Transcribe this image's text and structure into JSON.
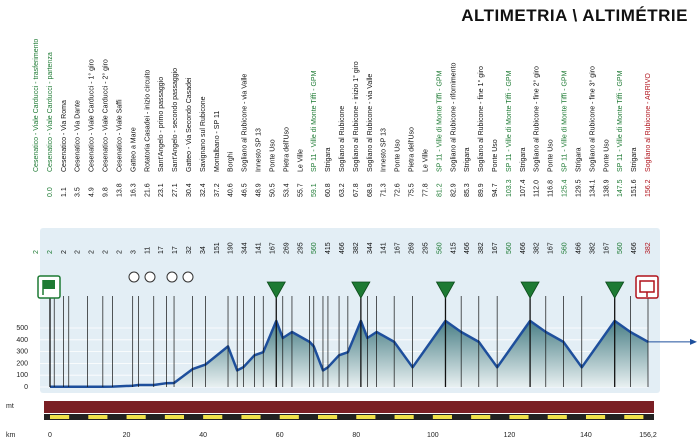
{
  "title": "ALTIMETRIA \\ ALTIMÉTRIE",
  "colors": {
    "green": "#1d7a33",
    "red": "#b0121b",
    "black": "#111111",
    "profile_stroke": "#1e4f9c",
    "profile_fill_top": "#4a7f86",
    "profile_fill_bottom": "#e8f0f1",
    "road_band": "#7a1f24",
    "km_bar_yellow": "#f0e14a",
    "sky_panel": "#e3eef5"
  },
  "axis": {
    "y_unit": "mt",
    "x_unit": "km",
    "y_ticks": [
      "500",
      "400",
      "300",
      "200",
      "100",
      "0"
    ],
    "x_ticks": [
      "0",
      "20",
      "40",
      "60",
      "80",
      "100",
      "120",
      "140"
    ],
    "x_end_label": "156,2"
  },
  "icons": {
    "start": "start-flag-icon",
    "finish": "finish-sign-icon",
    "sprint": "sprint-circles-icon",
    "gpm": "gpm-triangle-icon"
  },
  "waypoints": [
    {
      "name": "Cesenatico - Viale Carducci - trasferimento",
      "km": "",
      "alt": "2",
      "color": "green"
    },
    {
      "name": "Cesenatico - Viale Carducci - partenza",
      "km": "0.0",
      "alt": "2",
      "color": "green"
    },
    {
      "name": "Cesenatico - Via Roma",
      "km": "1.1",
      "alt": "2",
      "color": "black"
    },
    {
      "name": "Cesenatico - Via Dante",
      "km": "3.5",
      "alt": "2",
      "color": "black"
    },
    {
      "name": "Cesenatico - Viale Carducci - 1° giro",
      "km": "4.9",
      "alt": "2",
      "color": "black"
    },
    {
      "name": "Cesenatico - Viale Carducci - 2° giro",
      "km": "9.8",
      "alt": "2",
      "color": "black"
    },
    {
      "name": "Cesenatico - Viale Saffi",
      "km": "13.8",
      "alt": "2",
      "color": "black"
    },
    {
      "name": "Gatteo a Mare",
      "km": "16.3",
      "alt": "3",
      "color": "black"
    },
    {
      "name": "Rotatoria Casadei - inizio circuito",
      "km": "21.6",
      "alt": "11",
      "color": "black"
    },
    {
      "name": "Sant'Angelo - primo passaggio",
      "km": "23.1",
      "alt": "17",
      "color": "black"
    },
    {
      "name": "Sant'Angelo - secondo passaggio",
      "km": "27.1",
      "alt": "17",
      "color": "black"
    },
    {
      "name": "Gatteo - Via Secondo Casadei",
      "km": "30.4",
      "alt": "32",
      "color": "black"
    },
    {
      "name": "Savignano sul Rubicone",
      "km": "32.4",
      "alt": "34",
      "color": "black"
    },
    {
      "name": "Montalbano - SP 11",
      "km": "37.2",
      "alt": "151",
      "color": "black"
    },
    {
      "name": "Borghi",
      "km": "40.6",
      "alt": "190",
      "color": "black"
    },
    {
      "name": "Sogliano al Rubicone - via Valle",
      "km": "46.5",
      "alt": "344",
      "color": "black"
    },
    {
      "name": "Innesto SP 13",
      "km": "48.9",
      "alt": "141",
      "color": "black"
    },
    {
      "name": "Ponte Uso",
      "km": "50.5",
      "alt": "167",
      "color": "black"
    },
    {
      "name": "Pietra dell'Uso",
      "km": "53.4",
      "alt": "269",
      "color": "black"
    },
    {
      "name": "Le Ville",
      "km": "55.7",
      "alt": "295",
      "color": "black"
    },
    {
      "name": "SP 11 - Ville di Monte Tiffi - GPM",
      "km": "59.1",
      "alt": "560",
      "color": "green"
    },
    {
      "name": "Strigara",
      "km": "60.8",
      "alt": "415",
      "color": "black"
    },
    {
      "name": "Sogliano al Rubicone",
      "km": "63.2",
      "alt": "466",
      "color": "black"
    },
    {
      "name": "Sogliano al Rubicone - inizio 1° giro",
      "km": "67.8",
      "alt": "382",
      "color": "black"
    },
    {
      "name": "Sogliano al Rubicone - via Valle",
      "km": "68.9",
      "alt": "344",
      "color": "black"
    },
    {
      "name": "Innesto SP 13",
      "km": "71.3",
      "alt": "141",
      "color": "black"
    },
    {
      "name": "Ponte Uso",
      "km": "72.6",
      "alt": "167",
      "color": "black"
    },
    {
      "name": "Pietra dell'Uso",
      "km": "75.5",
      "alt": "269",
      "color": "black"
    },
    {
      "name": "Le Ville",
      "km": "77.8",
      "alt": "295",
      "color": "black"
    },
    {
      "name": "SP 11 - Ville di Monte Tiffi - GPM",
      "km": "81.2",
      "alt": "560",
      "color": "green"
    },
    {
      "name": "Sogliano al Rubicone - rifornimento",
      "km": "82.9",
      "alt": "415",
      "color": "black"
    },
    {
      "name": "Strigara",
      "km": "85.3",
      "alt": "466",
      "color": "black"
    },
    {
      "name": "Sogliano al Rubicone - fine 1° giro",
      "km": "89.9",
      "alt": "382",
      "color": "black"
    },
    {
      "name": "Ponte Uso",
      "km": "94.7",
      "alt": "167",
      "color": "black"
    },
    {
      "name": "SP 11 - Ville di Monte Tiffi - GPM",
      "km": "103.3",
      "alt": "560",
      "color": "green"
    },
    {
      "name": "Strigara",
      "km": "107.4",
      "alt": "466",
      "color": "black"
    },
    {
      "name": "Sogliano al Rubicone - fine 2° giro",
      "km": "112.0",
      "alt": "382",
      "color": "black"
    },
    {
      "name": "Ponte Uso",
      "km": "116.8",
      "alt": "167",
      "color": "black"
    },
    {
      "name": "SP 11 - Ville di Monte Tiffi - GPM",
      "km": "125.4",
      "alt": "560",
      "color": "green"
    },
    {
      "name": "Strigara",
      "km": "129.5",
      "alt": "466",
      "color": "black"
    },
    {
      "name": "Sogliano al Rubicone - fine 3° giro",
      "km": "134.1",
      "alt": "382",
      "color": "black"
    },
    {
      "name": "Ponte Uso",
      "km": "138.9",
      "alt": "167",
      "color": "black"
    },
    {
      "name": "SP 11 - Ville di Monte Tiffi - GPM",
      "km": "147.5",
      "alt": "560",
      "color": "green"
    },
    {
      "name": "Strigara",
      "km": "151.6",
      "alt": "466",
      "color": "black"
    },
    {
      "name": "Sogliano al Rubicone - ARRIVO",
      "km": "156.2",
      "alt": "382",
      "color": "red"
    }
  ]
}
